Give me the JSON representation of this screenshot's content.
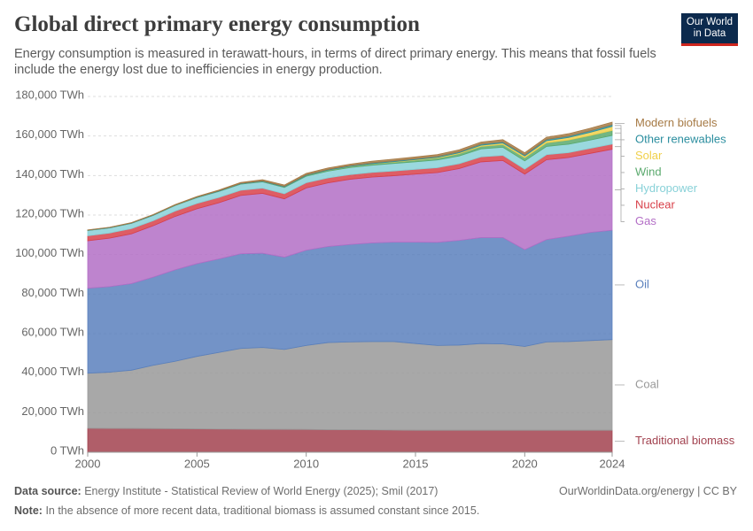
{
  "chart_data": {
    "type": "stacked-area",
    "title": "Global direct primary energy consumption",
    "subtitle": "Energy consumption is measured in terawatt-hours, in terms of direct primary energy. This means that fossil fuels include the energy lost due to inefficiencies in energy production.",
    "logo": "Our World in Data",
    "source_label": "Data source:",
    "source": "Energy Institute - Statistical Review of World Energy (2025); Smil (2017)",
    "credit": "OurWorldinData.org/energy | CC BY",
    "note_label": "Note:",
    "note": "In the absence of more recent data, traditional biomass is assumed constant since 2015.",
    "x": [
      2000,
      2001,
      2002,
      2003,
      2004,
      2005,
      2006,
      2007,
      2008,
      2009,
      2010,
      2011,
      2012,
      2013,
      2014,
      2015,
      2016,
      2017,
      2018,
      2019,
      2020,
      2021,
      2022,
      2023,
      2024
    ],
    "xlim": [
      2000,
      2024
    ],
    "xticks": [
      2000,
      2005,
      2010,
      2015,
      2020,
      2024
    ],
    "ylim": [
      0,
      180000
    ],
    "yticks": [
      {
        "value": 0,
        "label": "0 TWh"
      },
      {
        "value": 20000,
        "label": "20,000 TWh"
      },
      {
        "value": 40000,
        "label": "40,000 TWh"
      },
      {
        "value": 60000,
        "label": "60,000 TWh"
      },
      {
        "value": 80000,
        "label": "80,000 TWh"
      },
      {
        "value": 100000,
        "label": "100,000 TWh"
      },
      {
        "value": 120000,
        "label": "120,000 TWh"
      },
      {
        "value": 140000,
        "label": "140,000 TWh"
      },
      {
        "value": 160000,
        "label": "160,000 TWh"
      },
      {
        "value": 180000,
        "label": "180,000 TWh"
      }
    ],
    "grid": true,
    "series": [
      {
        "name": "Traditional biomass",
        "color": "#a2424f",
        "values": [
          12100,
          12050,
          12000,
          11950,
          11900,
          11800,
          11700,
          11650,
          11600,
          11550,
          11500,
          11400,
          11350,
          11300,
          11200,
          11100,
          11100,
          11100,
          11100,
          11100,
          11100,
          11100,
          11100,
          11100,
          11100
        ]
      },
      {
        "name": "Coal",
        "color": "#999999",
        "values": [
          27900,
          28450,
          29500,
          32050,
          34100,
          36700,
          38800,
          40850,
          41400,
          40450,
          42500,
          44100,
          44450,
          44700,
          44800,
          43900,
          42900,
          43100,
          43900,
          43700,
          42400,
          44700,
          44900,
          45400,
          45900
        ]
      },
      {
        "name": "Oil",
        "color": "#5a80bd",
        "values": [
          43000,
          43300,
          43800,
          44600,
          46300,
          46900,
          47300,
          47900,
          47700,
          46700,
          48200,
          48600,
          49300,
          49900,
          50300,
          51300,
          52200,
          53000,
          53600,
          53800,
          49000,
          51800,
          53300,
          54700,
          55300
        ]
      },
      {
        "name": "Gas",
        "color": "#b36ec6",
        "values": [
          24000,
          24500,
          25200,
          26000,
          27000,
          27800,
          28400,
          29500,
          30300,
          29500,
          31500,
          32200,
          33000,
          33300,
          33600,
          34400,
          35300,
          36300,
          38300,
          39000,
          38200,
          40400,
          39800,
          40000,
          41000
        ]
      },
      {
        "name": "Nuclear",
        "color": "#d8414a",
        "values": [
          2540,
          2600,
          2630,
          2570,
          2700,
          2690,
          2700,
          2650,
          2620,
          2560,
          2630,
          2520,
          2350,
          2370,
          2410,
          2440,
          2470,
          2500,
          2540,
          2600,
          2500,
          2550,
          2480,
          2540,
          2630
        ]
      },
      {
        "name": "Hydropower",
        "color": "#88d1d8",
        "values": [
          2650,
          2600,
          2650,
          2670,
          2810,
          2900,
          3000,
          3050,
          3170,
          3190,
          3330,
          3400,
          3560,
          3650,
          3770,
          3800,
          3890,
          3920,
          4050,
          4100,
          4210,
          4180,
          4260,
          4200,
          4350
        ]
      },
      {
        "name": "Wind",
        "color": "#5aa96d",
        "values": [
          31,
          38,
          52,
          63,
          85,
          104,
          133,
          171,
          220,
          277,
          342,
          434,
          522,
          640,
          712,
          831,
          962,
          1130,
          1270,
          1420,
          1600,
          1850,
          2100,
          2300,
          2500
        ]
      },
      {
        "name": "Solar",
        "color": "#f0d04a",
        "values": [
          1,
          1,
          2,
          2,
          3,
          4,
          6,
          7,
          12,
          20,
          32,
          64,
          100,
          139,
          197,
          256,
          328,
          447,
          576,
          700,
          850,
          1040,
          1300,
          1640,
          2100
        ]
      },
      {
        "name": "Other renewables",
        "color": "#2b8e9f",
        "values": [
          170,
          175,
          185,
          200,
          215,
          230,
          250,
          270,
          290,
          310,
          340,
          370,
          390,
          420,
          450,
          480,
          510,
          550,
          590,
          630,
          660,
          700,
          740,
          790,
          850
        ]
      },
      {
        "name": "Modern biofuels",
        "color": "#a67a45",
        "values": [
          110,
          130,
          150,
          180,
          230,
          280,
          360,
          480,
          590,
          640,
          720,
          720,
          740,
          820,
          880,
          900,
          930,
          960,
          1030,
          1080,
          1000,
          1100,
          1180,
          1250,
          1300
        ]
      }
    ]
  }
}
